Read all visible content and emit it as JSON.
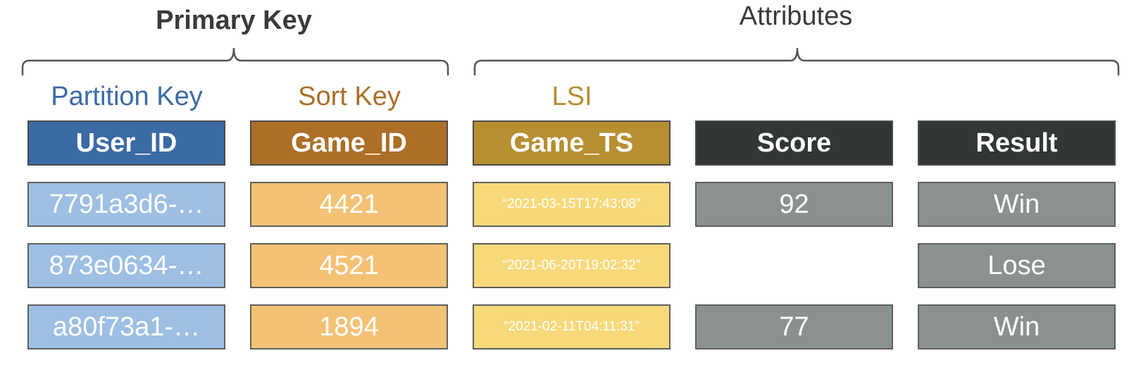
{
  "groups": {
    "primary_key": "Primary Key",
    "attributes": "Attributes"
  },
  "column_labels": {
    "partition_key": "Partition Key",
    "sort_key": "Sort Key",
    "lsi": "LSI"
  },
  "headers": {
    "user_id": "User_ID",
    "game_id": "Game_ID",
    "game_ts": "Game_TS",
    "score": "Score",
    "result": "Result"
  },
  "rows": [
    {
      "user_id": "7791a3d6-…",
      "game_id": "4421",
      "game_ts": "“2021-03-15T17:43:08”",
      "score": "92",
      "result": "Win"
    },
    {
      "user_id": "873e0634-…",
      "game_id": "4521",
      "game_ts": "“2021-06-20T19:02:32”",
      "score": "",
      "result": "Lose"
    },
    {
      "user_id": "a80f73a1-…",
      "game_id": "1894",
      "game_ts": "“2021-02-11T04:11:31”",
      "score": "77",
      "result": "Win"
    }
  ],
  "colors": {
    "partition_header": "#3b6ba5",
    "partition_cell": "#9dbfe3",
    "partition_label": "#3b6ba5",
    "sort_header": "#ad6f28",
    "sort_cell": "#f4c275",
    "sort_label": "#ad6f28",
    "lsi_header": "#b68f30",
    "lsi_cell": "#f7d97a",
    "lsi_label": "#b68f30",
    "attr_header": "#333637",
    "attr_cell": "#8b9191"
  }
}
